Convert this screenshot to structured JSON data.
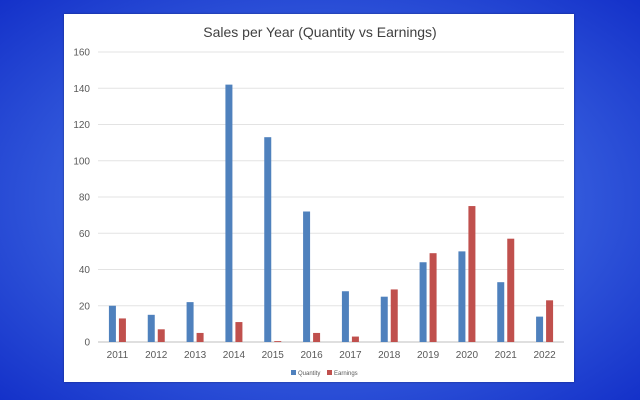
{
  "chart_data": {
    "type": "bar",
    "title": "Sales per Year (Quantity vs Earnings)",
    "xlabel": "",
    "ylabel": "",
    "categories": [
      "2011",
      "2012",
      "2013",
      "2014",
      "2015",
      "2016",
      "2017",
      "2018",
      "2019",
      "2020",
      "2021",
      "2022"
    ],
    "series": [
      {
        "name": "Quantity",
        "color": "#4f81bd",
        "values": [
          20,
          15,
          22,
          142,
          113,
          72,
          28,
          25,
          44,
          50,
          33,
          14
        ]
      },
      {
        "name": "Earnings",
        "color": "#c0504d",
        "values": [
          13,
          7,
          5,
          11,
          0.5,
          5,
          3,
          29,
          49,
          75,
          57,
          23
        ]
      }
    ],
    "ylim": [
      0,
      160
    ],
    "yticks": [
      0,
      20,
      40,
      60,
      80,
      100,
      120,
      140,
      160
    ],
    "grid": true,
    "legend_position": "bottom"
  }
}
